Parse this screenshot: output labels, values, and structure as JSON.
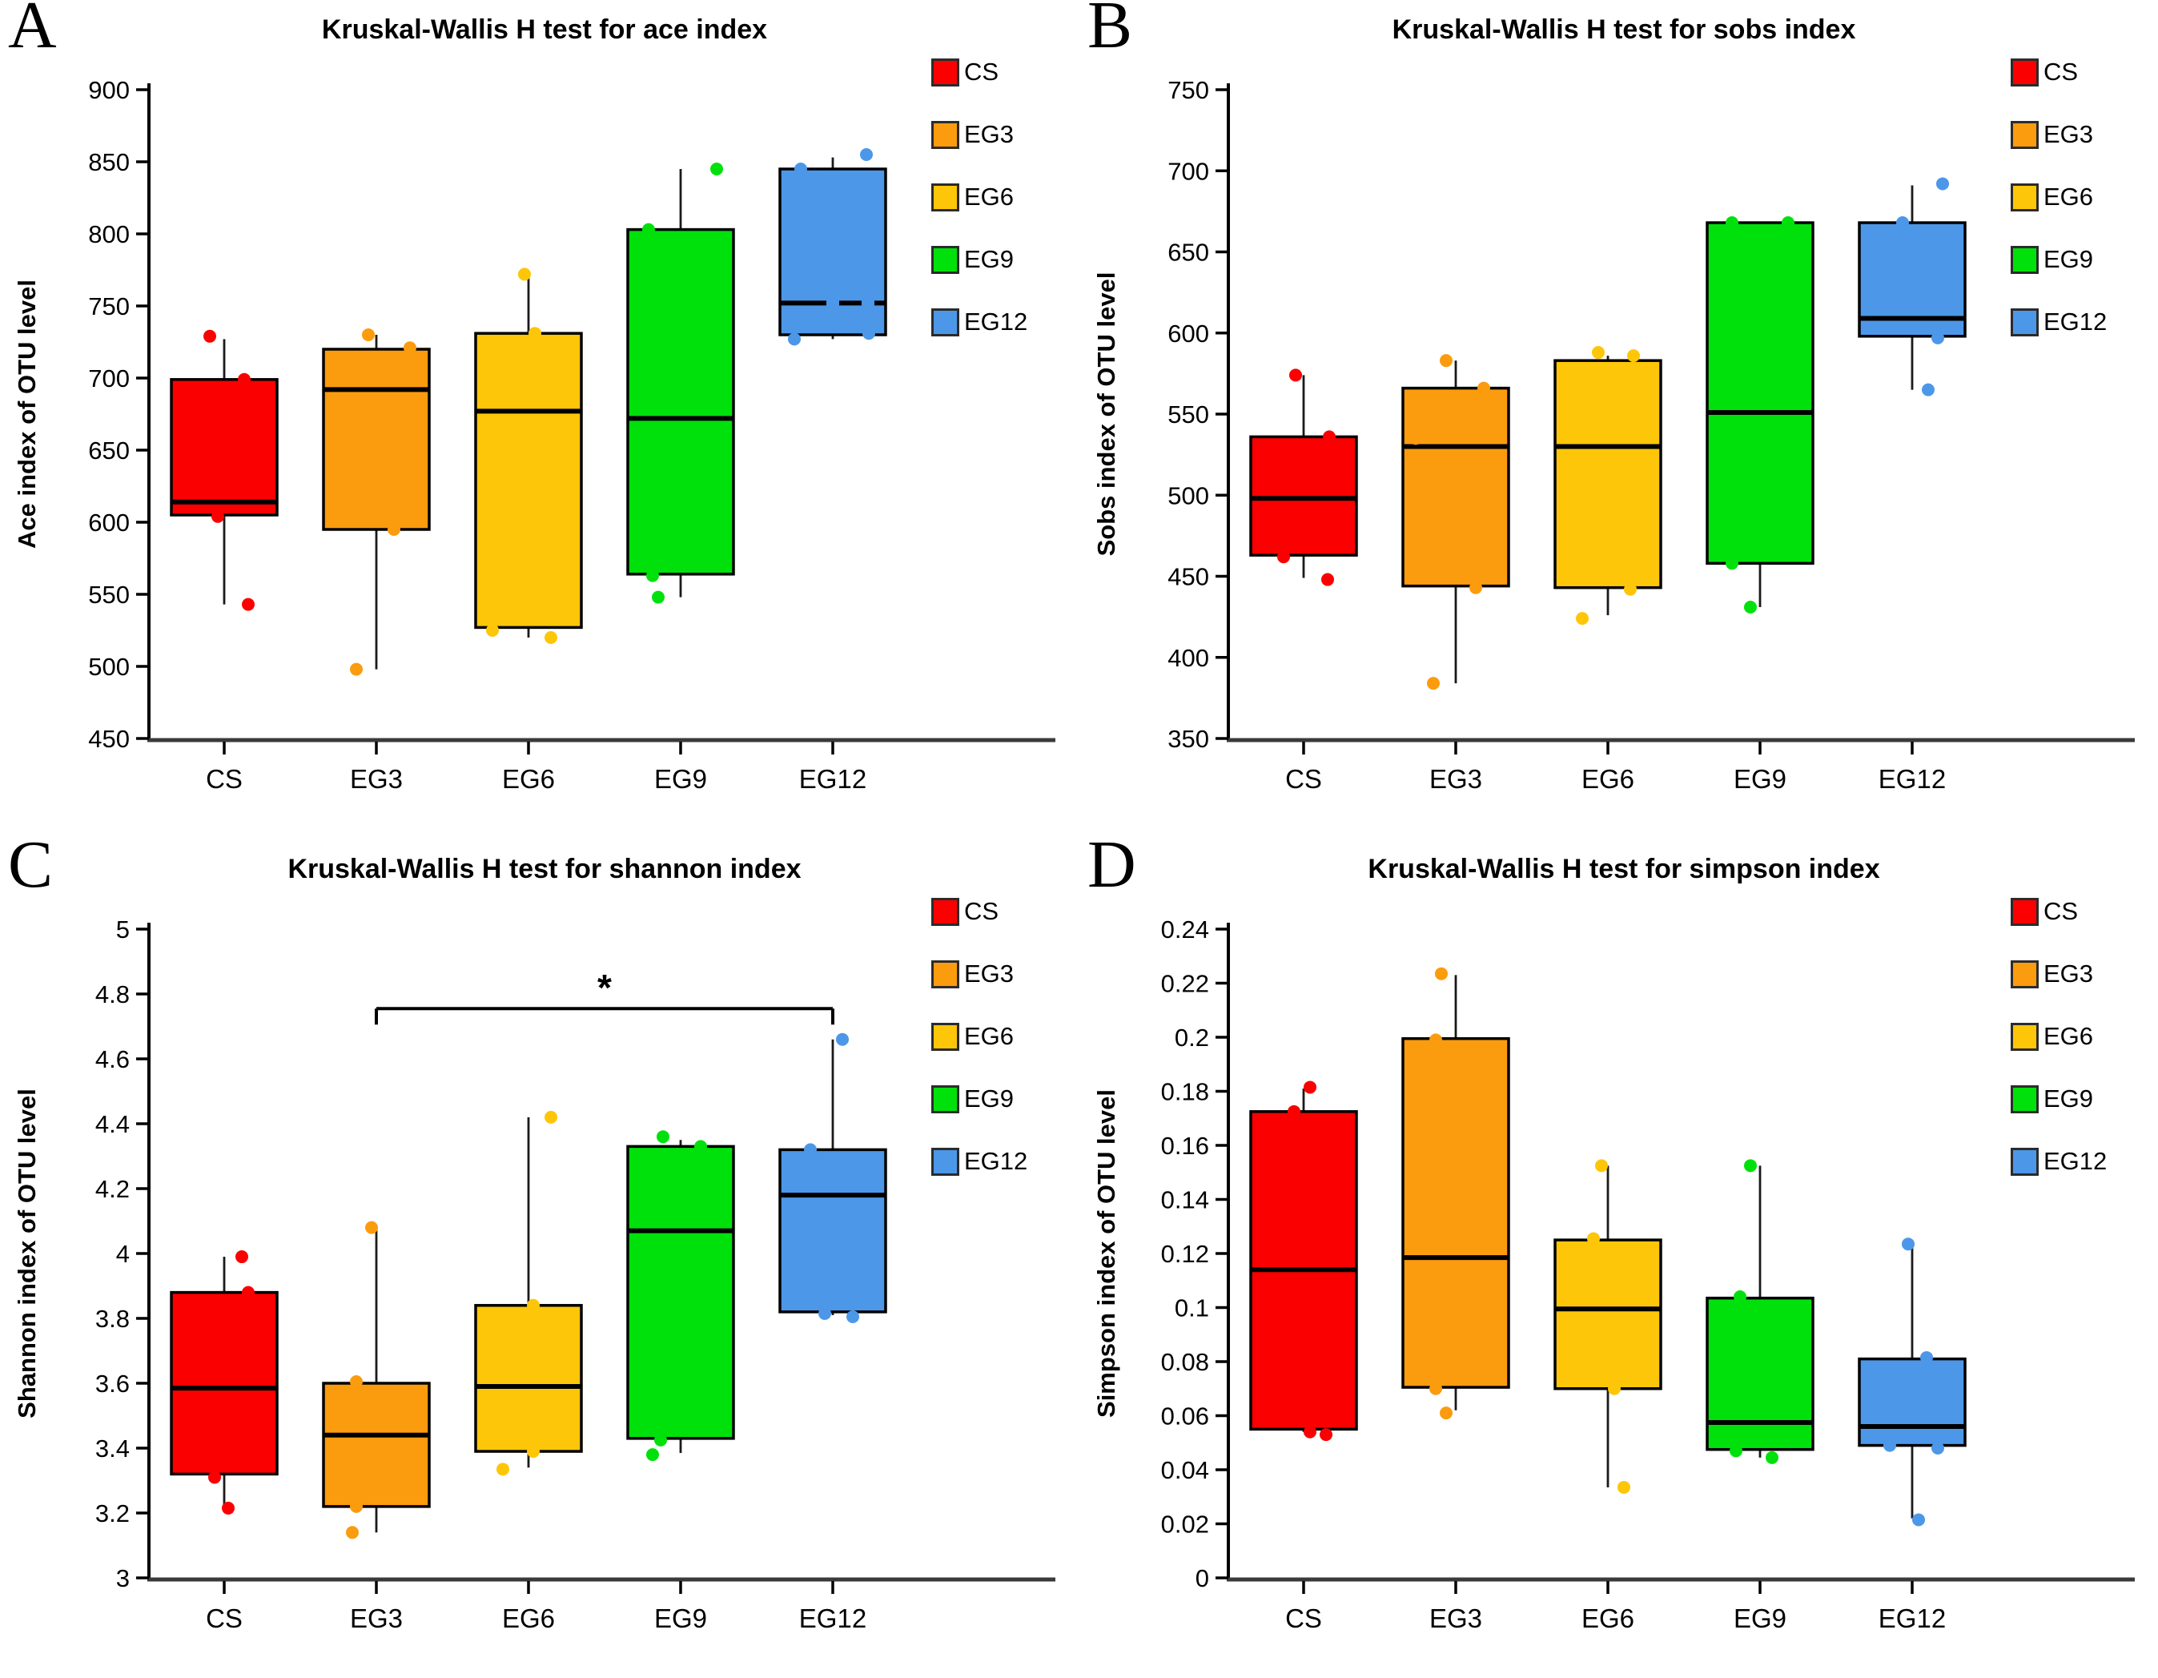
{
  "figure": {
    "background": "#ffffff",
    "description": "Four-panel box plot figure of Kruskal-Wallis H tests on alpha-diversity indices at OTU level for groups CS, EG3, EG6, EG9, EG12"
  },
  "chart_data": [
    {
      "panel_letter": "A",
      "type": "box",
      "title": "Kruskal-Wallis H test for ace index",
      "ylabel": "Ace index of OTU level",
      "xlabel": "",
      "ylim": [
        450,
        900
      ],
      "yticks": [
        450,
        500,
        550,
        600,
        650,
        700,
        750,
        800,
        850,
        900
      ],
      "ytick_labels": [
        "450",
        "500",
        "550",
        "600",
        "650",
        "700",
        "750",
        "800",
        "850",
        "900"
      ],
      "categories": [
        "CS",
        "EG3",
        "EG6",
        "EG9",
        "EG12"
      ],
      "legend_position": "top-right",
      "grid": false,
      "significance": null,
      "groups": [
        {
          "name": "CS",
          "color": "#fa0000",
          "low": 543,
          "q1": 605,
          "median": 614,
          "q3": 699,
          "high": 727,
          "median_dashed": false,
          "points": [
            {
              "v": 729,
              "dx": -18
            },
            {
              "v": 699,
              "dx": 25
            },
            {
              "v": 604,
              "dx": -8
            },
            {
              "v": 543,
              "dx": 30
            }
          ]
        },
        {
          "name": "EG3",
          "color": "#fb9b0e",
          "low": 498,
          "q1": 595,
          "median": 692,
          "q3": 720,
          "high": 730,
          "median_dashed": false,
          "points": [
            {
              "v": 730,
              "dx": -10
            },
            {
              "v": 721,
              "dx": 42
            },
            {
              "v": 712,
              "dx": -52
            },
            {
              "v": 595,
              "dx": 22
            },
            {
              "v": 498,
              "dx": -25
            }
          ]
        },
        {
          "name": "EG6",
          "color": "#fdc608",
          "low": 520,
          "q1": 527,
          "median": 677,
          "q3": 731,
          "high": 772,
          "median_dashed": false,
          "points": [
            {
              "v": 772,
              "dx": -5
            },
            {
              "v": 731,
              "dx": 8
            },
            {
              "v": 525,
              "dx": -45
            },
            {
              "v": 520,
              "dx": 28
            }
          ]
        },
        {
          "name": "EG9",
          "color": "#00e10c",
          "low": 548,
          "q1": 564,
          "median": 672,
          "q3": 803,
          "high": 845,
          "median_dashed": false,
          "points": [
            {
              "v": 845,
              "dx": 45
            },
            {
              "v": 803,
              "dx": -40
            },
            {
              "v": 563,
              "dx": -35
            },
            {
              "v": 548,
              "dx": -28
            }
          ]
        },
        {
          "name": "EG12",
          "color": "#4d97e8",
          "low": 727,
          "q1": 730,
          "median": 752,
          "q3": 845,
          "high": 853,
          "median_dashed": true,
          "points": [
            {
              "v": 855,
              "dx": 42
            },
            {
              "v": 845,
              "dx": -40
            },
            {
              "v": 731,
              "dx": 45
            },
            {
              "v": 727,
              "dx": -48
            }
          ]
        }
      ]
    },
    {
      "panel_letter": "B",
      "type": "box",
      "title": "Kruskal-Wallis H test for sobs index",
      "ylabel": "Sobs index of OTU level",
      "xlabel": "",
      "ylim": [
        350,
        750
      ],
      "yticks": [
        350,
        400,
        450,
        500,
        550,
        600,
        650,
        700,
        750
      ],
      "ytick_labels": [
        "350",
        "400",
        "450",
        "500",
        "550",
        "600",
        "650",
        "700",
        "750"
      ],
      "categories": [
        "CS",
        "EG3",
        "EG6",
        "EG9",
        "EG12"
      ],
      "legend_position": "top-right",
      "grid": false,
      "significance": null,
      "groups": [
        {
          "name": "CS",
          "color": "#fa0000",
          "low": 449,
          "q1": 463,
          "median": 498,
          "q3": 536,
          "high": 574,
          "median_dashed": false,
          "points": [
            {
              "v": 574,
              "dx": -10
            },
            {
              "v": 536,
              "dx": 32
            },
            {
              "v": 462,
              "dx": -25
            },
            {
              "v": 448,
              "dx": 30
            }
          ]
        },
        {
          "name": "EG3",
          "color": "#fb9b0e",
          "low": 384,
          "q1": 444,
          "median": 530,
          "q3": 566,
          "high": 583,
          "median_dashed": false,
          "points": [
            {
              "v": 583,
              "dx": -12
            },
            {
              "v": 566,
              "dx": 35
            },
            {
              "v": 535,
              "dx": -50
            },
            {
              "v": 443,
              "dx": 25
            },
            {
              "v": 384,
              "dx": -28
            }
          ]
        },
        {
          "name": "EG6",
          "color": "#fdc608",
          "low": 426,
          "q1": 443,
          "median": 530,
          "q3": 583,
          "high": 586,
          "median_dashed": false,
          "points": [
            {
              "v": 588,
              "dx": -12
            },
            {
              "v": 586,
              "dx": 32
            },
            {
              "v": 442,
              "dx": 28
            },
            {
              "v": 424,
              "dx": -32
            }
          ]
        },
        {
          "name": "EG9",
          "color": "#00e10c",
          "low": 431,
          "q1": 458,
          "median": 551,
          "q3": 668,
          "high": 668,
          "median_dashed": false,
          "points": [
            {
              "v": 668,
              "dx": -35
            },
            {
              "v": 668,
              "dx": 35
            },
            {
              "v": 458,
              "dx": -35
            },
            {
              "v": 431,
              "dx": -12
            }
          ]
        },
        {
          "name": "EG12",
          "color": "#4d97e8",
          "low": 565,
          "q1": 598,
          "median": 609,
          "q3": 668,
          "high": 691,
          "median_dashed": false,
          "points": [
            {
              "v": 692,
              "dx": 38
            },
            {
              "v": 668,
              "dx": -12
            },
            {
              "v": 597,
              "dx": 32
            },
            {
              "v": 565,
              "dx": 20
            }
          ]
        }
      ]
    },
    {
      "panel_letter": "C",
      "type": "box",
      "title": "Kruskal-Wallis H test for shannon index",
      "ylabel": "Shannon index of OTU level",
      "xlabel": "",
      "ylim": [
        3,
        5
      ],
      "yticks": [
        3,
        3.2,
        3.4,
        3.6,
        3.8,
        4,
        4.2,
        4.4,
        4.6,
        4.8,
        5
      ],
      "ytick_labels": [
        "3",
        "3.2",
        "3.4",
        "3.6",
        "3.8",
        "4",
        "4.2",
        "4.4",
        "4.6",
        "4.8",
        "5"
      ],
      "categories": [
        "CS",
        "EG3",
        "EG6",
        "EG9",
        "EG12"
      ],
      "legend_position": "top-right",
      "grid": false,
      "significance": {
        "from": "EG3",
        "to": "EG12",
        "y": 4.755,
        "label": "*"
      },
      "groups": [
        {
          "name": "CS",
          "color": "#fa0000",
          "low": 3.22,
          "q1": 3.32,
          "median": 3.585,
          "q3": 3.88,
          "high": 3.99,
          "median_dashed": false,
          "points": [
            {
              "v": 3.99,
              "dx": 22
            },
            {
              "v": 3.88,
              "dx": 30
            },
            {
              "v": 3.31,
              "dx": -12
            },
            {
              "v": 3.215,
              "dx": 5
            }
          ]
        },
        {
          "name": "EG3",
          "color": "#fb9b0e",
          "low": 3.14,
          "q1": 3.22,
          "median": 3.44,
          "q3": 3.6,
          "high": 4.08,
          "median_dashed": false,
          "points": [
            {
              "v": 4.08,
              "dx": -6
            },
            {
              "v": 3.605,
              "dx": -25
            },
            {
              "v": 3.54,
              "dx": 35
            },
            {
              "v": 3.22,
              "dx": -25
            },
            {
              "v": 3.14,
              "dx": -30
            }
          ]
        },
        {
          "name": "EG6",
          "color": "#fdc608",
          "low": 3.34,
          "q1": 3.39,
          "median": 3.59,
          "q3": 3.84,
          "high": 4.42,
          "median_dashed": false,
          "points": [
            {
              "v": 4.42,
              "dx": 28
            },
            {
              "v": 3.84,
              "dx": 6
            },
            {
              "v": 3.39,
              "dx": 6
            },
            {
              "v": 3.335,
              "dx": -32
            }
          ]
        },
        {
          "name": "EG9",
          "color": "#00e10c",
          "low": 3.385,
          "q1": 3.43,
          "median": 4.07,
          "q3": 4.33,
          "high": 4.35,
          "median_dashed": false,
          "points": [
            {
              "v": 4.36,
              "dx": -22
            },
            {
              "v": 4.33,
              "dx": 25
            },
            {
              "v": 3.425,
              "dx": -25
            },
            {
              "v": 3.38,
              "dx": -35
            }
          ]
        },
        {
          "name": "EG12",
          "color": "#4d97e8",
          "low": 3.81,
          "q1": 3.82,
          "median": 4.18,
          "q3": 4.32,
          "high": 4.66,
          "median_dashed": false,
          "points": [
            {
              "v": 4.66,
              "dx": 12
            },
            {
              "v": 4.32,
              "dx": -28
            },
            {
              "v": 4.26,
              "dx": 52
            },
            {
              "v": 3.815,
              "dx": -10
            },
            {
              "v": 3.805,
              "dx": 25
            }
          ]
        }
      ]
    },
    {
      "panel_letter": "D",
      "type": "box",
      "title": "Kruskal-Wallis H test for simpson index",
      "ylabel": "Simpson index of OTU level",
      "xlabel": "",
      "ylim": [
        0,
        0.24
      ],
      "yticks": [
        0,
        0.02,
        0.04,
        0.06,
        0.08,
        0.1,
        0.12,
        0.14,
        0.16,
        0.18,
        0.2,
        0.22,
        0.24
      ],
      "ytick_labels": [
        "0",
        "0.02",
        "0.04",
        "0.06",
        "0.08",
        "0.1",
        "0.12",
        "0.14",
        "0.16",
        "0.18",
        "0.2",
        "0.22",
        "0.24"
      ],
      "categories": [
        "CS",
        "EG3",
        "EG6",
        "EG9",
        "EG12"
      ],
      "legend_position": "top-right",
      "grid": false,
      "significance": null,
      "groups": [
        {
          "name": "CS",
          "color": "#fa0000",
          "low": 0.054,
          "q1": 0.055,
          "median": 0.114,
          "q3": 0.1725,
          "high": 0.181,
          "median_dashed": false,
          "points": [
            {
              "v": 0.1815,
              "dx": 8
            },
            {
              "v": 0.1725,
              "dx": -12
            },
            {
              "v": 0.054,
              "dx": 8
            },
            {
              "v": 0.053,
              "dx": 28
            }
          ]
        },
        {
          "name": "EG3",
          "color": "#fb9b0e",
          "low": 0.062,
          "q1": 0.0705,
          "median": 0.1185,
          "q3": 0.1995,
          "high": 0.223,
          "median_dashed": false,
          "points": [
            {
              "v": 0.2235,
              "dx": -18
            },
            {
              "v": 0.199,
              "dx": -25
            },
            {
              "v": 0.136,
              "dx": 48
            },
            {
              "v": 0.07,
              "dx": -25
            },
            {
              "v": 0.061,
              "dx": -12
            }
          ]
        },
        {
          "name": "EG6",
          "color": "#fdc608",
          "low": 0.0335,
          "q1": 0.07,
          "median": 0.0995,
          "q3": 0.125,
          "high": 0.1525,
          "median_dashed": false,
          "points": [
            {
              "v": 0.1525,
              "dx": -8
            },
            {
              "v": 0.1255,
              "dx": -18
            },
            {
              "v": 0.07,
              "dx": 8
            },
            {
              "v": 0.0335,
              "dx": 20
            }
          ]
        },
        {
          "name": "EG9",
          "color": "#00e10c",
          "low": 0.0445,
          "q1": 0.0475,
          "median": 0.0575,
          "q3": 0.1035,
          "high": 0.1525,
          "median_dashed": false,
          "points": [
            {
              "v": 0.1525,
              "dx": -12
            },
            {
              "v": 0.104,
              "dx": -25
            },
            {
              "v": 0.047,
              "dx": -30
            },
            {
              "v": 0.0445,
              "dx": 15
            }
          ]
        },
        {
          "name": "EG12",
          "color": "#4d97e8",
          "low": 0.022,
          "q1": 0.049,
          "median": 0.056,
          "q3": 0.081,
          "high": 0.1235,
          "median_dashed": false,
          "points": [
            {
              "v": 0.1235,
              "dx": -5
            },
            {
              "v": 0.0815,
              "dx": 18
            },
            {
              "v": 0.049,
              "dx": -28
            },
            {
              "v": 0.048,
              "dx": 32
            },
            {
              "v": 0.0215,
              "dx": 8
            }
          ]
        }
      ]
    }
  ]
}
